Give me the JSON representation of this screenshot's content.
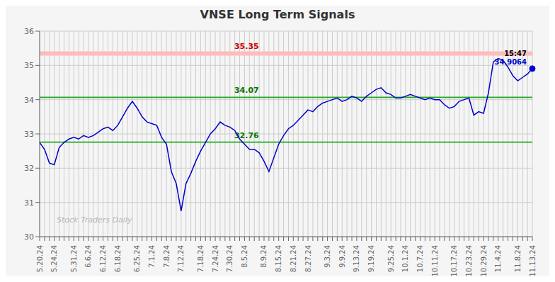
{
  "chart_data": {
    "type": "line",
    "title": "VNSE Long Term Signals",
    "watermark": "Stock Traders Daily",
    "categories": [
      "5.20.24",
      null,
      null,
      "5.24.24",
      null,
      null,
      null,
      "5.31.24",
      null,
      null,
      "6.6.24",
      null,
      null,
      "6.12.24",
      null,
      null,
      "6.18.24",
      null,
      null,
      null,
      "6.25.24",
      null,
      null,
      "7.1.24",
      null,
      null,
      "7.8.24",
      null,
      null,
      "7.12.24",
      null,
      null,
      null,
      "7.18.24",
      null,
      null,
      "7.24.24",
      null,
      null,
      "7.30.24",
      null,
      null,
      "8.5.24",
      null,
      null,
      null,
      "8.9.24",
      null,
      null,
      "8.15.24",
      null,
      null,
      "8.21.24",
      null,
      null,
      "8.27.24",
      null,
      null,
      null,
      "9.3.24",
      null,
      null,
      "9.9.24",
      null,
      null,
      "9.13.24",
      null,
      null,
      "9.19.24",
      null,
      null,
      null,
      "9.25.24",
      null,
      null,
      "10.1.24",
      null,
      null,
      "10.7.24",
      null,
      null,
      "10.11.24",
      null,
      null,
      null,
      "10.17.24",
      null,
      null,
      "10.23.24",
      null,
      null,
      "10.29.24",
      null,
      null,
      "11.4.24",
      null,
      null,
      null,
      "11.8.24",
      null,
      null,
      "11.13.24"
    ],
    "values": [
      32.75,
      32.55,
      32.15,
      32.1,
      32.6,
      32.75,
      32.85,
      32.9,
      32.85,
      32.95,
      32.9,
      32.95,
      33.05,
      33.15,
      33.2,
      33.1,
      33.25,
      33.5,
      33.75,
      33.95,
      33.75,
      33.5,
      33.35,
      33.3,
      33.25,
      32.9,
      32.7,
      31.9,
      31.55,
      30.75,
      31.55,
      31.85,
      32.2,
      32.5,
      32.75,
      33.0,
      33.15,
      33.35,
      33.25,
      33.2,
      33.1,
      32.85,
      32.7,
      32.55,
      32.55,
      32.45,
      32.2,
      31.9,
      32.3,
      32.7,
      32.95,
      33.15,
      33.25,
      33.4,
      33.55,
      33.7,
      33.65,
      33.8,
      33.9,
      33.95,
      34.0,
      34.05,
      33.95,
      34.0,
      34.1,
      34.05,
      33.95,
      34.1,
      34.2,
      34.3,
      34.35,
      34.2,
      34.15,
      34.05,
      34.05,
      34.1,
      34.15,
      34.1,
      34.05,
      34.0,
      34.05,
      34.0,
      34.0,
      33.85,
      33.75,
      33.8,
      33.95,
      34.0,
      34.05,
      33.55,
      33.65,
      33.6,
      34.2,
      35.1,
      35.2,
      35.15,
      34.95,
      34.7,
      34.55,
      34.65,
      34.75,
      34.9064
    ],
    "color": "#0000cc",
    "ylim": [
      30,
      36
    ],
    "yticks": [
      30,
      31,
      32,
      33,
      34,
      35,
      36
    ],
    "grid": true,
    "grid_color": "#cccccc",
    "background": "#f5f5f5",
    "reference_lines": [
      {
        "value": 35.35,
        "color": "#ffbbbb",
        "label_color": "#cc0000"
      },
      {
        "value": 34.07,
        "color": "#22aa22",
        "label_color": "#007700"
      },
      {
        "value": 32.76,
        "color": "#22aa22",
        "label_color": "#007700"
      }
    ],
    "last_point": {
      "time": "15:47",
      "value": 34.9064,
      "color": "#0000cc"
    }
  }
}
